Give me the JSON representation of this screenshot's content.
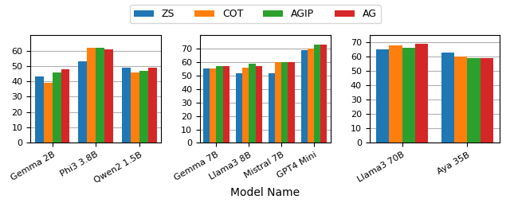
{
  "chart_data": [
    {
      "type": "bar",
      "categories": [
        "Gemma 2B",
        "Phi3 3.8B",
        "Qwen2 1.5B"
      ],
      "series": [
        {
          "name": "ZS",
          "values": [
            43,
            53,
            49
          ]
        },
        {
          "name": "COT",
          "values": [
            39,
            62,
            46
          ]
        },
        {
          "name": "AGIP",
          "values": [
            46,
            62,
            47
          ]
        },
        {
          "name": "AG",
          "values": [
            48,
            61,
            49
          ]
        }
      ],
      "ylim": [
        0,
        70
      ],
      "yticks": [
        0,
        10,
        20,
        30,
        40,
        50,
        60
      ],
      "grid": true,
      "legend": "upper center"
    },
    {
      "type": "bar",
      "x_label": "Model Name",
      "categories": [
        "Gemma 7B",
        "Llama3 8B",
        "Mistral 7B",
        "GPT4 Mini"
      ],
      "series": [
        {
          "name": "ZS",
          "values": [
            55,
            52,
            52,
            69
          ]
        },
        {
          "name": "COT",
          "values": [
            55,
            56,
            60,
            70
          ]
        },
        {
          "name": "AGIP",
          "values": [
            57,
            59,
            60,
            73
          ]
        },
        {
          "name": "AG",
          "values": [
            57,
            57,
            60,
            73
          ]
        }
      ],
      "ylim": [
        0,
        80
      ],
      "yticks": [
        0,
        10,
        20,
        30,
        40,
        50,
        60,
        70
      ],
      "grid": true
    },
    {
      "type": "bar",
      "categories": [
        "Llama3 70B",
        "Aya 35B"
      ],
      "series": [
        {
          "name": "ZS",
          "values": [
            65,
            63
          ]
        },
        {
          "name": "COT",
          "values": [
            68,
            60
          ]
        },
        {
          "name": "AGIP",
          "values": [
            66,
            59
          ]
        },
        {
          "name": "AG",
          "values": [
            69,
            59
          ]
        }
      ],
      "ylim": [
        0,
        75
      ],
      "yticks": [
        0,
        10,
        20,
        30,
        40,
        50,
        60,
        70
      ],
      "grid": true
    }
  ]
}
